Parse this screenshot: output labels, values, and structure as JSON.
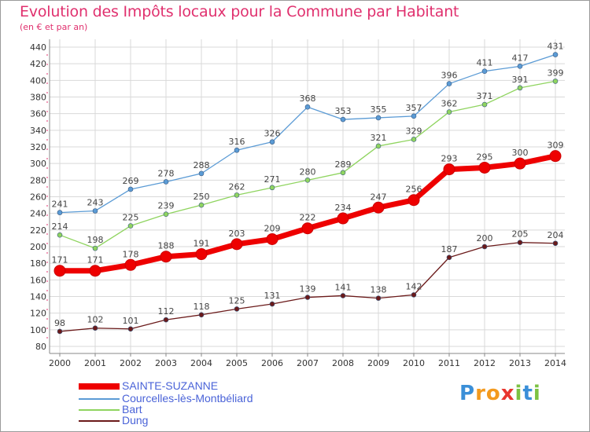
{
  "title": "Evolution des Impôts locaux pour la Commune par Habitant",
  "subtitle": "(en € et par an)",
  "logo": {
    "text": "Proxiti",
    "letters": [
      "P",
      "r",
      "o",
      "x",
      "i",
      "t",
      "i"
    ],
    "colors": [
      "#3a8fd8",
      "#f39a1e",
      "#f39a1e",
      "#e8352e",
      "#7cc242",
      "#3a8fd8",
      "#7cc242"
    ]
  },
  "chart_data": {
    "type": "line",
    "title": "Evolution des Impôts locaux pour la Commune par Habitant",
    "subtitle": "(en € et par an)",
    "x": [
      "2000",
      "2001",
      "2002",
      "2003",
      "2004",
      "2005",
      "2006",
      "2007",
      "2008",
      "2009",
      "2010",
      "2011",
      "2012",
      "2013",
      "2014"
    ],
    "ylim": [
      80,
      440
    ],
    "yticks": [
      80,
      100,
      120,
      140,
      160,
      180,
      200,
      220,
      240,
      260,
      280,
      300,
      320,
      340,
      360,
      380,
      400,
      420,
      440
    ],
    "grid": true,
    "legend_position": "bottom-left",
    "series": [
      {
        "name": "SAINTE-SUZANNE",
        "color": "#ee0000",
        "values": [
          171,
          171,
          178,
          188,
          191,
          203,
          209,
          222,
          234,
          247,
          256,
          293,
          295,
          300,
          309
        ]
      },
      {
        "name": "Courcelles-lès-Montbéliard",
        "color": "#5b9bd5",
        "values": [
          241,
          243,
          269,
          278,
          288,
          316,
          326,
          368,
          353,
          355,
          357,
          396,
          411,
          417,
          431
        ]
      },
      {
        "name": "Bart",
        "color": "#8fd45f",
        "values": [
          214,
          198,
          225,
          239,
          250,
          262,
          271,
          280,
          289,
          321,
          329,
          362,
          371,
          391,
          399
        ]
      },
      {
        "name": "Dung",
        "color": "#6b1a1a",
        "values": [
          98,
          102,
          101,
          112,
          118,
          125,
          131,
          139,
          141,
          138,
          142,
          187,
          200,
          205,
          204
        ]
      }
    ]
  }
}
